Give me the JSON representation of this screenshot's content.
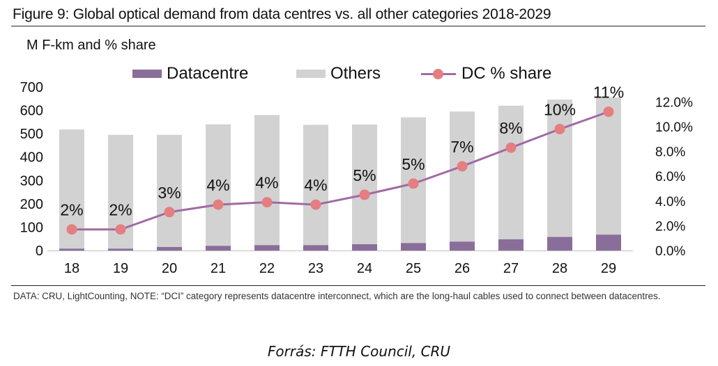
{
  "figure": {
    "title": "Figure 9: Global optical demand from data centres vs. all other categories 2018-2029",
    "unit_label": "M F-km and % share"
  },
  "legend": {
    "dc": "Datacentre",
    "others": "Others",
    "share": "DC % share"
  },
  "colors": {
    "datacentre": "#8a6e9a",
    "others": "#d2d2d2",
    "share_line": "#a06aa4",
    "share_marker": "#e57e81"
  },
  "chart_data": {
    "type": "bar",
    "stacked": true,
    "categories": [
      "18",
      "19",
      "20",
      "21",
      "22",
      "23",
      "24",
      "25",
      "26",
      "27",
      "28",
      "29"
    ],
    "series": [
      {
        "name": "Datacentre",
        "values": [
          8,
          8,
          15,
          20,
          23,
          23,
          27,
          32,
          38,
          48,
          58,
          68
        ]
      },
      {
        "name": "Others",
        "values": [
          510,
          487,
          480,
          520,
          557,
          515,
          512,
          538,
          557,
          572,
          588,
          587
        ]
      }
    ],
    "line_series": {
      "name": "DC % share",
      "axis": "right",
      "values": [
        1.7,
        1.7,
        3.1,
        3.7,
        3.9,
        3.7,
        4.5,
        5.4,
        6.8,
        8.3,
        9.8,
        11.2
      ],
      "labels": [
        "2%",
        "2%",
        "3%",
        "4%",
        "4%",
        "4%",
        "5%",
        "5%",
        "7%",
        "8%",
        "10%",
        "11%"
      ]
    },
    "y_left": {
      "ylim": [
        0,
        700
      ],
      "ticks": [
        "0",
        "100",
        "200",
        "300",
        "400",
        "500",
        "600",
        "700"
      ]
    },
    "y_right": {
      "ylim": [
        0,
        13.2
      ],
      "ticks": [
        "0.0%",
        "2.0%",
        "4.0%",
        "6.0%",
        "8.0%",
        "10.0%",
        "12.0%"
      ]
    },
    "xlabel": "",
    "ylabel": "M F-km and % share",
    "legend_position": "top"
  },
  "note": "DATA: CRU, LightCounting, NOTE: “DCI” category represents datacentre interconnect, which are the long-haul cables used to connect between datacentres.",
  "source": "Forrás: FTTH Council, CRU"
}
